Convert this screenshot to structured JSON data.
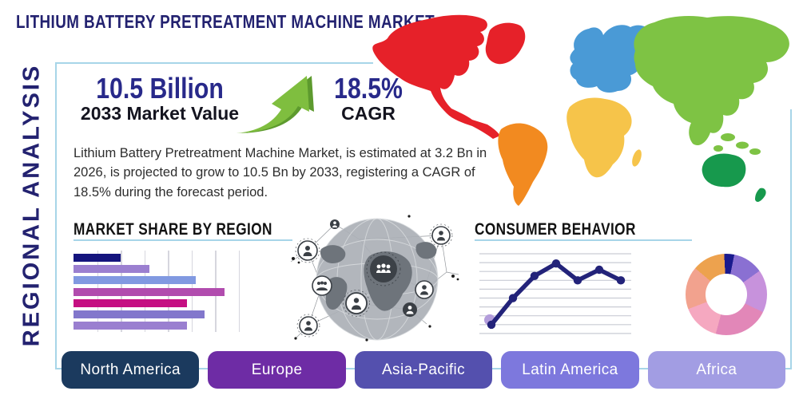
{
  "title": "LITHIUM BATTERY PRETREATMENT MACHINE MARKET",
  "side_label": "REGIONAL ANALYSIS",
  "stats": {
    "market_value": "10.5 Billion",
    "market_value_label": "2033 Market Value",
    "cagr_value": "18.5%",
    "cagr_label": "CAGR"
  },
  "description": "Lithium Battery Pretreatment Machine Market, is estimated at 3.2 Bn in 2026, is projected to grow to 10.5 Bn by 2033, registering a CAGR of 18.5% during the forecast period.",
  "sections": {
    "bar_chart_title": "MARKET SHARE BY REGION",
    "line_chart_title": "CONSUMER BEHAVIOR"
  },
  "colors": {
    "accent_navy": "#232270",
    "box_border": "#a7d5e8",
    "arrow_green": "#7fbe3f",
    "arrow_green_shadow": "#5d9a2e"
  },
  "map": {
    "continent_colors": {
      "north_america": "#e62129",
      "greenland": "#e62129",
      "south_america": "#f28a20",
      "europe": "#4a9ad6",
      "africa": "#f6c44a",
      "asia": "#7ec344",
      "australia": "#17994d"
    }
  },
  "chart_data": [
    {
      "type": "bar",
      "orientation": "horizontal",
      "title": "MARKET SHARE BY REGION",
      "categories": [
        "",
        "",
        "",
        "",
        "",
        "",
        ""
      ],
      "values": [
        31,
        50,
        81,
        100,
        75,
        87,
        75
      ],
      "unit": "relative market share (% of longest bar)",
      "colors": [
        "#14147d",
        "#9b7fd0",
        "#8199e1",
        "#b14cae",
        "#c50f82",
        "#8277cc",
        "#9a7fd0"
      ],
      "grid": true,
      "axis_labels": false
    },
    {
      "type": "line",
      "title": "CONSUMER BEHAVIOR",
      "x": [
        1,
        2,
        3,
        4,
        5,
        6,
        7
      ],
      "values": [
        1.0,
        4.0,
        6.5,
        7.9,
        6.0,
        7.2,
        6.0
      ],
      "ylim": [
        0,
        9
      ],
      "color": "#23237a",
      "first_point_halo": "#b39ddb",
      "grid_color": "#c9ccd4",
      "grid_lines": 10
    },
    {
      "type": "pie",
      "donut": true,
      "values": [
        4,
        12,
        17,
        22,
        15,
        17,
        13
      ],
      "colors": [
        "#1a1a8e",
        "#8a70d2",
        "#c792dc",
        "#e287b8",
        "#f5a8c0",
        "#f2a28e",
        "#eda24e"
      ],
      "start_angle_deg": -3
    }
  ],
  "region_buttons": [
    {
      "label": "North America",
      "color": "#1b3a5e"
    },
    {
      "label": "Europe",
      "color": "#6e2ca5"
    },
    {
      "label": "Asia-Pacific",
      "color": "#5450ae"
    },
    {
      "label": "Latin America",
      "color": "#7d78dd"
    },
    {
      "label": "Africa",
      "color": "#a29de3"
    }
  ]
}
